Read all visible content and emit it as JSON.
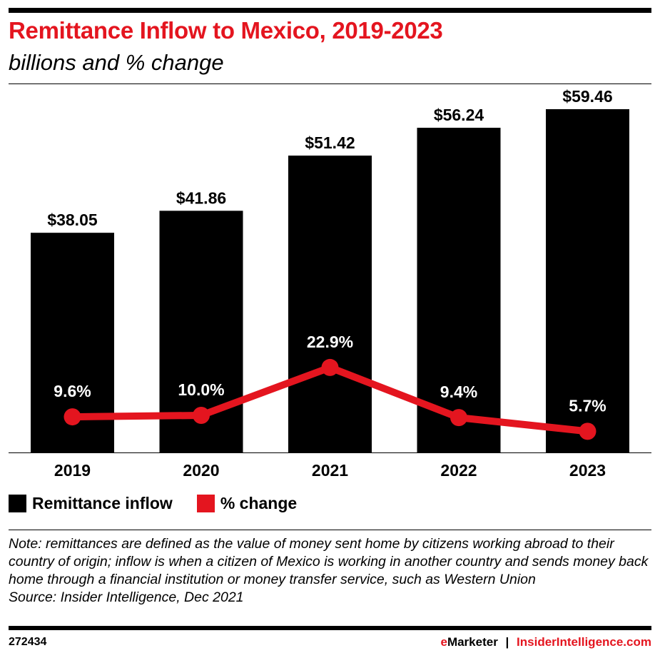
{
  "header": {
    "title": "Remittance Inflow to Mexico, 2019-2023",
    "subtitle": "billions and % change"
  },
  "chart_data": {
    "type": "bar",
    "categories": [
      "2019",
      "2020",
      "2021",
      "2022",
      "2023"
    ],
    "series": [
      {
        "name": "Remittance inflow",
        "type": "bar",
        "values": [
          38.05,
          41.86,
          51.42,
          56.24,
          59.46
        ],
        "labels": [
          "$38.05",
          "$41.86",
          "$51.42",
          "$56.24",
          "$59.46"
        ],
        "color": "#000000"
      },
      {
        "name": "% change",
        "type": "line",
        "values": [
          9.6,
          10.0,
          22.9,
          9.4,
          5.7
        ],
        "labels": [
          "9.6%",
          "10.0%",
          "22.9%",
          "9.4%",
          "5.7%"
        ],
        "color": "#e4151f"
      }
    ],
    "grid": false,
    "legend": "bottom-left"
  },
  "legend": {
    "items": [
      "Remittance inflow",
      "% change"
    ]
  },
  "note": "Note: remittances are defined as the value of money sent home by citizens working abroad to their country of origin; inflow is when a citizen of Mexico is working in another country and sends money back home through a financial institution or money transfer service, such as Western Union",
  "source": "Source: Insider Intelligence, Dec 2021",
  "footer": {
    "id": "272434",
    "brand_e": "e",
    "brand_rest": "Marketer",
    "separator": "|",
    "site": "InsiderIntelligence.com"
  }
}
